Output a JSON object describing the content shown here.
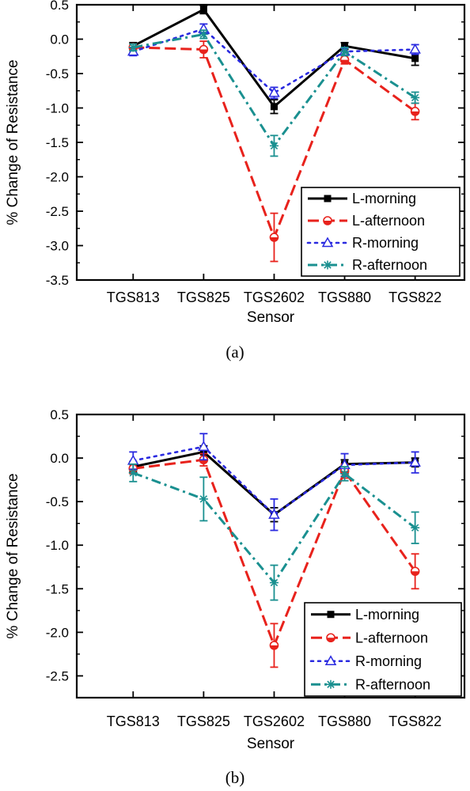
{
  "chart_data": [
    {
      "type": "line",
      "panel_label": "(a)",
      "xlabel": "Sensor",
      "ylabel": "% Change of Resistance",
      "categories": [
        "TGS813",
        "TGS825",
        "TGS2602",
        "TGS880",
        "TGS822"
      ],
      "ylim": [
        -3.5,
        0.5
      ],
      "yticks": [
        0.5,
        0.0,
        -0.5,
        -1.0,
        -1.5,
        -2.0,
        -2.5,
        -3.0,
        -3.5
      ],
      "ytick_labels": [
        "0.5",
        "0.0",
        "-0.5",
        "-1.0",
        "-1.5",
        "-2.0",
        "-2.5",
        "-3.0",
        "-3.5"
      ],
      "grid": false,
      "legend_position": "bottom-right",
      "series": [
        {
          "name": "L-morning",
          "color": "#000000",
          "marker": "filled-square",
          "dash": "solid",
          "values": [
            -0.1,
            0.43,
            -0.98,
            -0.1,
            -0.28
          ],
          "errors": [
            0.05,
            0.06,
            0.1,
            0.05,
            0.1
          ]
        },
        {
          "name": "L-afternoon",
          "color": "#e8221c",
          "marker": "half-circle",
          "dash": "long-dash",
          "values": [
            -0.12,
            -0.15,
            -2.88,
            -0.3,
            -1.05
          ],
          "errors": [
            0.05,
            0.12,
            0.35,
            0.06,
            0.12
          ]
        },
        {
          "name": "R-morning",
          "color": "#2a2ae0",
          "marker": "open-triangle",
          "dash": "dot",
          "values": [
            -0.18,
            0.15,
            -0.78,
            -0.18,
            -0.15
          ],
          "errors": [
            0.06,
            0.07,
            0.08,
            0.05,
            0.07
          ]
        },
        {
          "name": "R-afternoon",
          "color": "#1a9090",
          "marker": "star",
          "dash": "dash-dot",
          "values": [
            -0.12,
            0.07,
            -1.55,
            -0.18,
            -0.85
          ],
          "errors": [
            0.05,
            0.06,
            0.15,
            0.06,
            0.08
          ]
        }
      ]
    },
    {
      "type": "line",
      "panel_label": "(b)",
      "xlabel": "Sensor",
      "ylabel": "% Change of Resistance",
      "categories": [
        "TGS813",
        "TGS825",
        "TGS2602",
        "TGS880",
        "TGS822"
      ],
      "ylim": [
        -2.75,
        0.5
      ],
      "yticks": [
        0.5,
        0.0,
        -0.5,
        -1.0,
        -1.5,
        -2.0,
        -2.5
      ],
      "ytick_labels": [
        "0.5",
        "0.0",
        "-0.5",
        "-1.0",
        "-1.5",
        "-2.0",
        "-2.5"
      ],
      "grid": false,
      "legend_position": "bottom-right",
      "series": [
        {
          "name": "L-morning",
          "color": "#000000",
          "marker": "filled-square",
          "dash": "solid",
          "values": [
            -0.1,
            0.07,
            -0.65,
            -0.07,
            -0.05
          ],
          "errors": [
            0.06,
            0.07,
            0.08,
            0.05,
            0.05
          ]
        },
        {
          "name": "L-afternoon",
          "color": "#e8221c",
          "marker": "half-circle",
          "dash": "long-dash",
          "values": [
            -0.12,
            -0.02,
            -2.15,
            -0.15,
            -1.3
          ],
          "errors": [
            0.06,
            0.07,
            0.25,
            0.08,
            0.2
          ]
        },
        {
          "name": "R-morning",
          "color": "#2a2ae0",
          "marker": "open-triangle",
          "dash": "dot",
          "values": [
            -0.03,
            0.13,
            -0.65,
            -0.08,
            -0.05
          ],
          "errors": [
            0.1,
            0.15,
            0.18,
            0.13,
            0.12
          ]
        },
        {
          "name": "R-afternoon",
          "color": "#1a9090",
          "marker": "star",
          "dash": "dash-dot",
          "values": [
            -0.17,
            -0.47,
            -1.43,
            -0.18,
            -0.8
          ],
          "errors": [
            0.1,
            0.25,
            0.2,
            0.08,
            0.18
          ]
        }
      ]
    }
  ]
}
